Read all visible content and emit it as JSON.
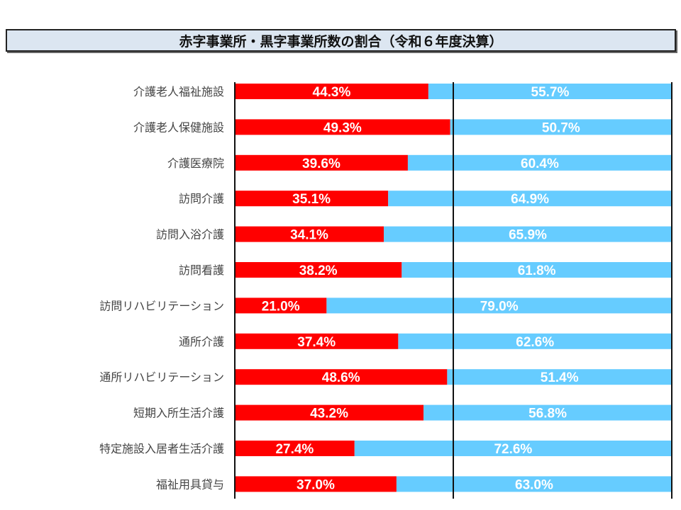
{
  "chart_data": {
    "type": "bar",
    "orientation": "horizontal",
    "stacked": "100%",
    "title": "赤字事業所・黒字事業所数の割合（令和６年度決算）",
    "categories": [
      "介護老人福祉施設",
      "介護老人保健施設",
      "介護医療院",
      "訪問介護",
      "訪問入浴介護",
      "訪問看護",
      "訪問リハビリテーション",
      "通所介護",
      "通所リハビリテーション",
      "短期入所生活介護",
      "特定施設入居者生活介護",
      "福祉用具貸与"
    ],
    "series": [
      {
        "name": "赤字",
        "color": "#ff0000",
        "values": [
          44.3,
          49.3,
          39.6,
          35.1,
          34.1,
          38.2,
          21.0,
          37.4,
          48.6,
          43.2,
          27.4,
          37.0
        ]
      },
      {
        "name": "黒字",
        "color": "#66ccff",
        "values": [
          55.7,
          50.7,
          60.4,
          64.9,
          65.9,
          61.8,
          79.0,
          62.6,
          51.4,
          56.8,
          72.6,
          63.0
        ]
      }
    ],
    "xlim": [
      0,
      100
    ],
    "gridlines": [
      0,
      50,
      100
    ],
    "legend": "none"
  }
}
